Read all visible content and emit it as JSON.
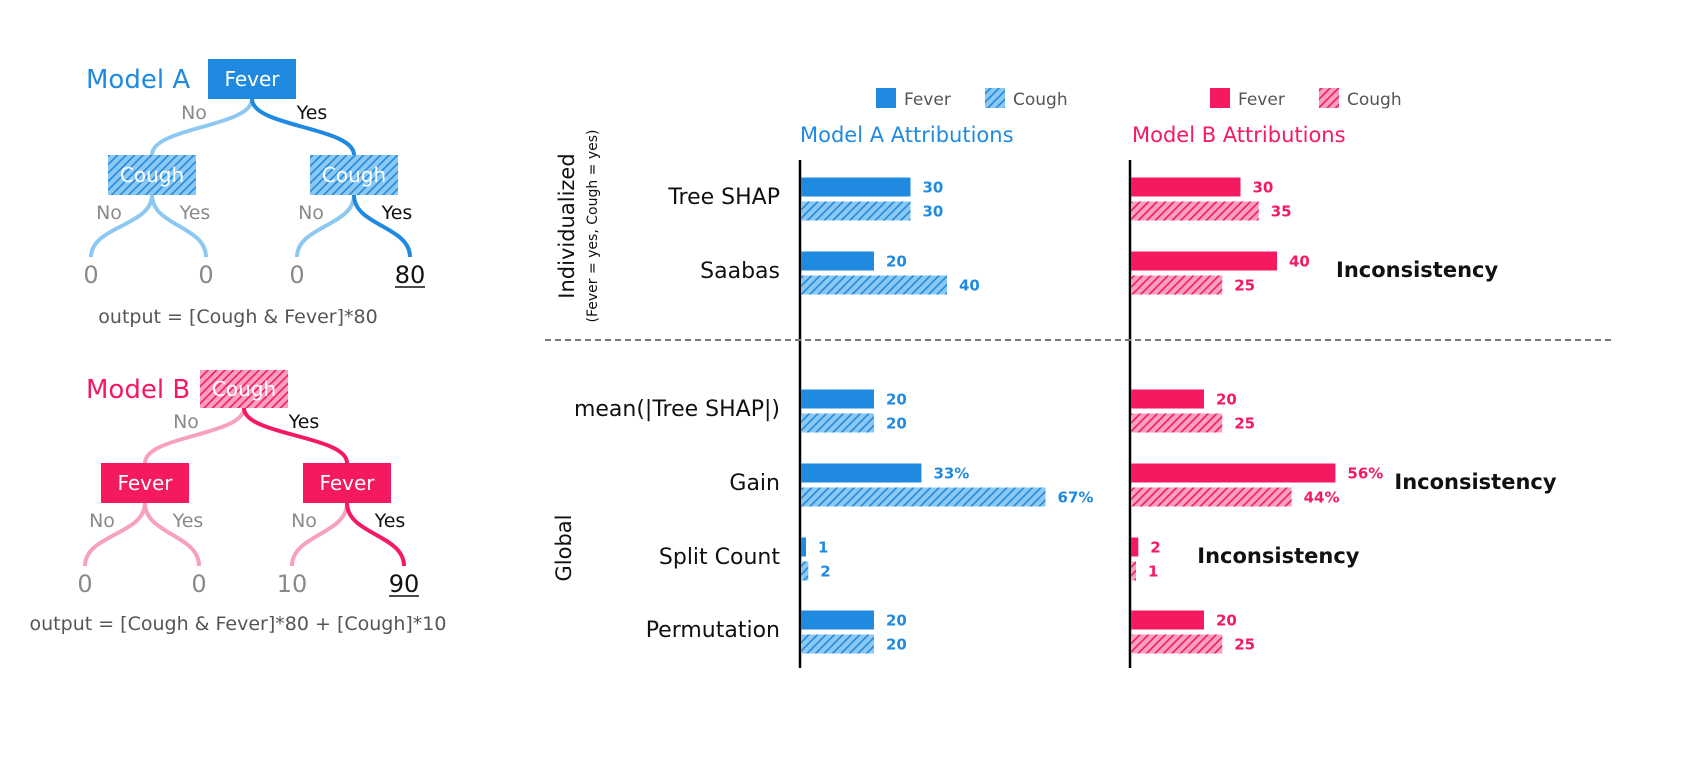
{
  "colors": {
    "blue": "#1f8ae0",
    "blue_light": "#8cc8f2",
    "pink": "#f5195f",
    "pink_light": "#f7a0bf",
    "gray_text": "#8a8a8a",
    "dark_text": "#111111"
  },
  "trees": [
    {
      "model_label": "Model A",
      "color": "blue",
      "root": {
        "label": "Fever",
        "style": "solid"
      },
      "children": [
        {
          "label": "Cough",
          "style": "hatched"
        },
        {
          "label": "Cough",
          "style": "hatched"
        }
      ],
      "edge_labels": {
        "root_no": "No",
        "root_yes": "Yes",
        "left_no": "No",
        "left_yes": "Yes",
        "right_no": "No",
        "right_yes": "Yes"
      },
      "leaves": [
        "0",
        "0",
        "0",
        "80"
      ],
      "formula": "output = [Cough & Fever]*80"
    },
    {
      "model_label": "Model B",
      "color": "pink",
      "root": {
        "label": "Cough",
        "style": "hatched"
      },
      "children": [
        {
          "label": "Fever",
          "style": "solid"
        },
        {
          "label": "Fever",
          "style": "solid"
        }
      ],
      "edge_labels": {
        "root_no": "No",
        "root_yes": "Yes",
        "left_no": "No",
        "left_yes": "Yes",
        "right_no": "No",
        "right_yes": "Yes"
      },
      "leaves": [
        "0",
        "0",
        "10",
        "90"
      ],
      "formula": "output = [Cough & Fever]*80 + [Cough]*10"
    }
  ],
  "chart_data": {
    "type": "bar",
    "panels": [
      {
        "title": "Model A Attributions",
        "color": "blue"
      },
      {
        "title": "Model B Attributions",
        "color": "pink"
      }
    ],
    "legend": [
      {
        "items": [
          {
            "name": "Fever",
            "style": "solid"
          },
          {
            "name": "Cough",
            "style": "hatched"
          }
        ],
        "color": "blue"
      },
      {
        "items": [
          {
            "name": "Fever",
            "style": "solid"
          },
          {
            "name": "Cough",
            "style": "hatched"
          }
        ],
        "color": "pink"
      }
    ],
    "groups": [
      {
        "label": "Individualized",
        "sublabel": "(Fever = yes, Cough = yes)",
        "methods": [
          {
            "name": "Tree SHAP",
            "model_a": {
              "fever": 30,
              "cough": 30,
              "fever_label": "30",
              "cough_label": "30"
            },
            "model_b": {
              "fever": 30,
              "cough": 35,
              "fever_label": "30",
              "cough_label": "35"
            },
            "annotation": ""
          },
          {
            "name": "Saabas",
            "model_a": {
              "fever": 20,
              "cough": 40,
              "fever_label": "20",
              "cough_label": "40"
            },
            "model_b": {
              "fever": 40,
              "cough": 25,
              "fever_label": "40",
              "cough_label": "25"
            },
            "annotation": "Inconsistency"
          }
        ]
      },
      {
        "label": "Global",
        "sublabel": "",
        "methods": [
          {
            "name": "mean(|Tree SHAP|)",
            "model_a": {
              "fever": 20,
              "cough": 20,
              "fever_label": "20",
              "cough_label": "20"
            },
            "model_b": {
              "fever": 20,
              "cough": 25,
              "fever_label": "20",
              "cough_label": "25"
            },
            "annotation": ""
          },
          {
            "name": "Gain",
            "model_a": {
              "fever": 33,
              "cough": 67,
              "fever_label": "33%",
              "cough_label": "67%"
            },
            "model_b": {
              "fever": 56,
              "cough": 44,
              "fever_label": "56%",
              "cough_label": "44%"
            },
            "annotation": "Inconsistency"
          },
          {
            "name": "Split Count",
            "model_a": {
              "fever": 1,
              "cough": 2,
              "fever_label": "1",
              "cough_label": "2"
            },
            "model_b": {
              "fever": 2,
              "cough": 1,
              "fever_label": "2",
              "cough_label": "1"
            },
            "annotation": "Inconsistency"
          },
          {
            "name": "Permutation",
            "model_a": {
              "fever": 20,
              "cough": 20,
              "fever_label": "20",
              "cough_label": "20"
            },
            "model_b": {
              "fever": 20,
              "cough": 25,
              "fever_label": "20",
              "cough_label": "25"
            },
            "annotation": ""
          }
        ]
      }
    ]
  }
}
